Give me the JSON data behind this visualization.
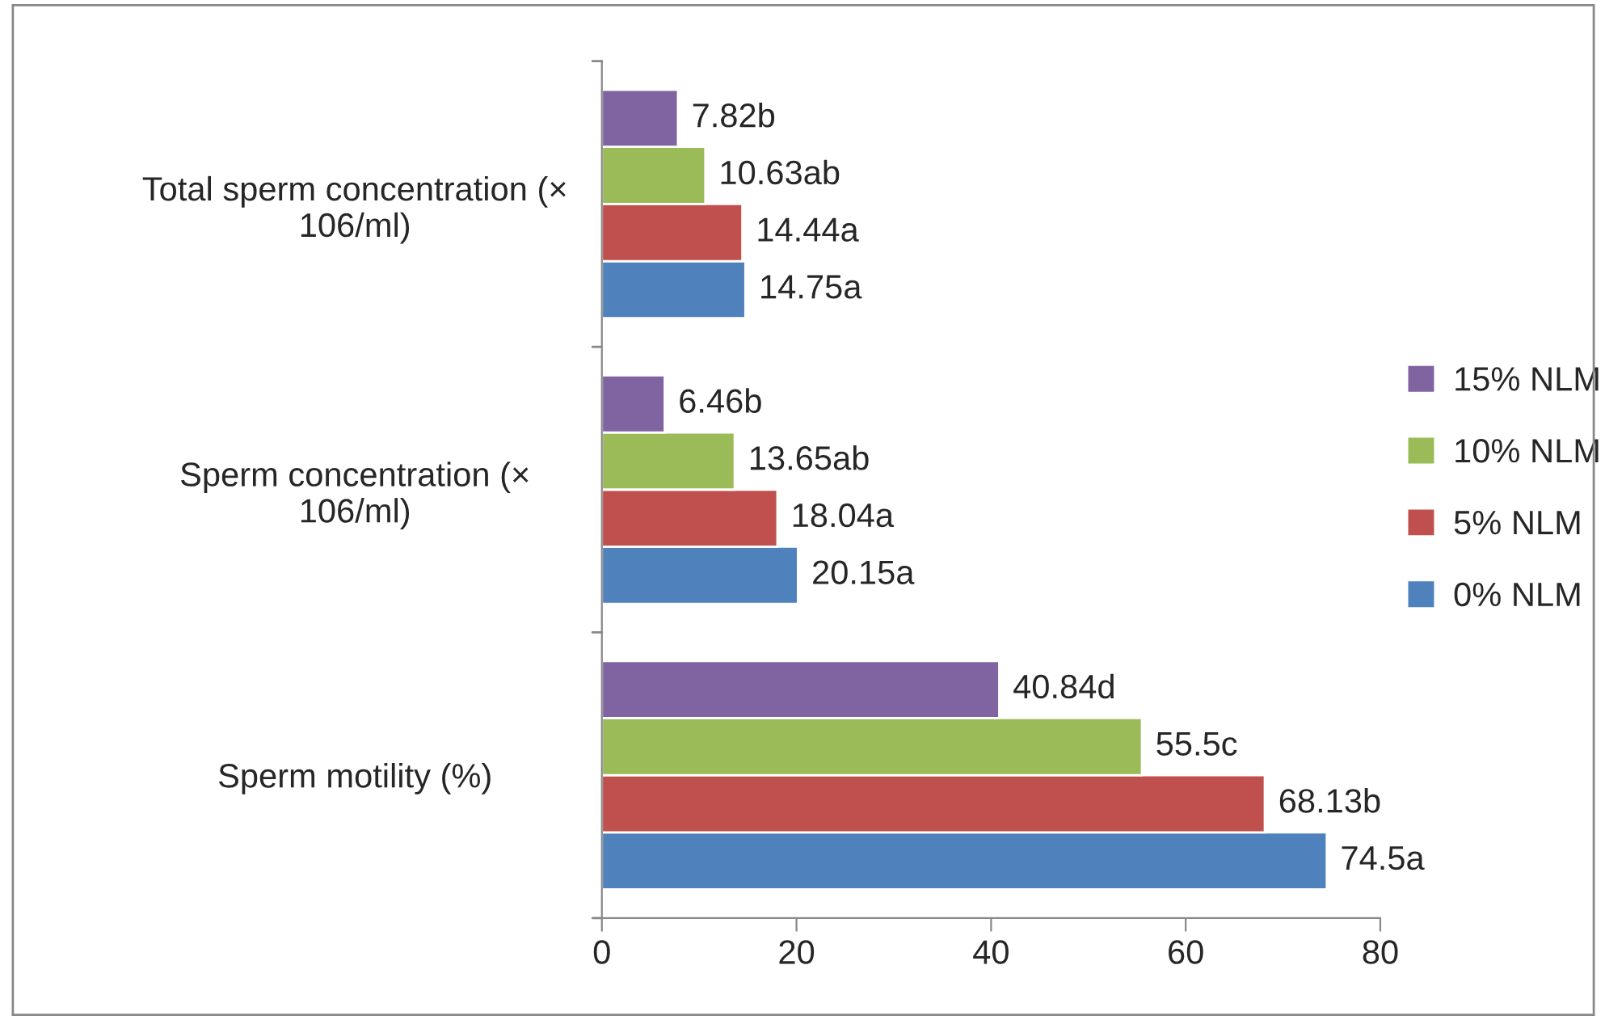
{
  "chart_data": {
    "type": "bar",
    "orientation": "horizontal",
    "categories": [
      "Total sperm concentration (× 106/ml)",
      "Sperm concentration (× 106/ml)",
      "Sperm motility (%)"
    ],
    "series": [
      {
        "name": "0% NLM",
        "color": "#4f81bd",
        "values": [
          14.75,
          20.15,
          74.5
        ],
        "value_labels": [
          "14.75a",
          "20.15a",
          "74.5a"
        ]
      },
      {
        "name": "5% NLM",
        "color": "#c0504d",
        "values": [
          14.44,
          18.04,
          68.13
        ],
        "value_labels": [
          "14.44a",
          "18.04a",
          "68.13b"
        ]
      },
      {
        "name": "10% NLM",
        "color": "#9bbb59",
        "values": [
          10.63,
          13.65,
          55.5
        ],
        "value_labels": [
          "10.63ab",
          "13.65ab",
          "55.5c"
        ]
      },
      {
        "name": "15% NLM",
        "color": "#8064a2",
        "values": [
          7.82,
          6.46,
          40.84
        ],
        "value_labels": [
          "7.82b",
          "6.46b",
          "40.84d"
        ]
      }
    ],
    "xlim": [
      0,
      80
    ],
    "xticks": [
      0,
      20,
      40,
      60,
      80
    ],
    "grid": false,
    "legend": "right"
  }
}
